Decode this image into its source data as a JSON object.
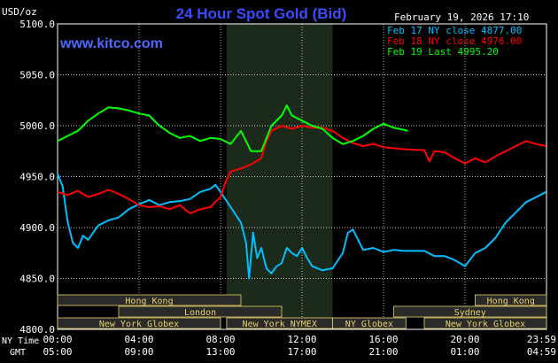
{
  "colors": {
    "background": "#000000",
    "grid": "#ffffff",
    "session_shade": "#1c2a1c",
    "title": "#3a4cff",
    "website": "#4a6cff",
    "text": "#ffffff",
    "band_fill": "#2a2a2a",
    "band_text": "#e8d26a",
    "band_border": "#e8d26a",
    "feb17": "#00bfff",
    "feb18": "#ff0000",
    "feb19": "#00ff00"
  },
  "header": {
    "unit": "USD/oz",
    "title": "24 Hour Spot Gold (Bid)",
    "datetime": "February 19, 2026 17:10",
    "website": "www.kitco.com"
  },
  "legend": {
    "entries": [
      {
        "id": "feb17",
        "label": "Feb 17 NY close 4877.00"
      },
      {
        "id": "feb18",
        "label": "Feb 18 NY close 4976.00"
      },
      {
        "id": "feb19",
        "label": "Feb 19 Last 4995.20"
      }
    ]
  },
  "axis": {
    "x_row_label_ny": "NY Time",
    "x_row_label_gmt": "GMT",
    "ny_ticks": [
      "00:00",
      "04:00",
      "08:00",
      "12:00",
      "16:00",
      "20:00",
      "23:59"
    ],
    "gmt_ticks": [
      "05:00",
      "09:00",
      "13:00",
      "17:00",
      "21:00",
      "01:00",
      "04:59"
    ]
  },
  "sessions": {
    "row1": [
      {
        "name": "Hong Kong",
        "start": 0,
        "end": 9
      },
      {
        "name": "Hong Kong",
        "start": 20.5,
        "end": 24
      }
    ],
    "row2": [
      {
        "name": "London",
        "start": 3,
        "end": 11
      },
      {
        "name": "Sydney",
        "start": 16.5,
        "end": 24
      }
    ],
    "row3": [
      {
        "name": "New York Globex",
        "start": 0,
        "end": 8
      },
      {
        "name": "New York NYMEX",
        "start": 8.3,
        "end": 13.5
      },
      {
        "name": "NY Globex",
        "start": 13.5,
        "end": 17.1
      },
      {
        "name": "New York Globex",
        "start": 18,
        "end": 24
      }
    ]
  },
  "chart_data": {
    "type": "line",
    "title": "24 Hour Spot Gold (Bid)",
    "ylabel": "USD/oz",
    "xlabel": "NY Time",
    "xlim": [
      0,
      24
    ],
    "ylim": [
      4800,
      5100
    ],
    "y_ticks": [
      "4800.0",
      "4850.0",
      "4900.0",
      "4950.0",
      "5000.0",
      "5050.0",
      "5100.0"
    ],
    "x_ticks": [
      0,
      4,
      8,
      12,
      16,
      20,
      23.98
    ],
    "shaded_session": [
      8.3,
      13.5
    ],
    "grid": true,
    "legend_position": "top-right",
    "series": [
      {
        "id": "feb17",
        "name": "Feb 17 NY close 4877.00",
        "points": [
          [
            0,
            4953
          ],
          [
            0.25,
            4940
          ],
          [
            0.5,
            4905
          ],
          [
            0.75,
            4885
          ],
          [
            1,
            4880
          ],
          [
            1.25,
            4892
          ],
          [
            1.5,
            4888
          ],
          [
            2,
            4902
          ],
          [
            2.5,
            4907
          ],
          [
            3,
            4910
          ],
          [
            3.5,
            4918
          ],
          [
            4,
            4923
          ],
          [
            4.5,
            4927
          ],
          [
            5,
            4922
          ],
          [
            5.5,
            4925
          ],
          [
            6,
            4926
          ],
          [
            6.5,
            4928
          ],
          [
            7,
            4935
          ],
          [
            7.5,
            4938
          ],
          [
            7.75,
            4942
          ],
          [
            8,
            4935
          ],
          [
            8.5,
            4920
          ],
          [
            9,
            4905
          ],
          [
            9.25,
            4885
          ],
          [
            9.4,
            4850
          ],
          [
            9.6,
            4895
          ],
          [
            9.8,
            4870
          ],
          [
            10,
            4880
          ],
          [
            10.25,
            4860
          ],
          [
            10.5,
            4855
          ],
          [
            10.75,
            4862
          ],
          [
            11,
            4865
          ],
          [
            11.25,
            4880
          ],
          [
            11.5,
            4875
          ],
          [
            11.75,
            4872
          ],
          [
            12,
            4880
          ],
          [
            12.25,
            4870
          ],
          [
            12.5,
            4862
          ],
          [
            13,
            4858
          ],
          [
            13.5,
            4860
          ],
          [
            14,
            4875
          ],
          [
            14.25,
            4895
          ],
          [
            14.5,
            4898
          ],
          [
            14.75,
            4888
          ],
          [
            15,
            4878
          ],
          [
            15.5,
            4880
          ],
          [
            16,
            4876
          ],
          [
            16.5,
            4878
          ],
          [
            17,
            4877
          ],
          [
            18,
            4877
          ],
          [
            18.5,
            4872
          ],
          [
            19,
            4872
          ],
          [
            19.5,
            4868
          ],
          [
            20,
            4862
          ],
          [
            20.5,
            4875
          ],
          [
            21,
            4880
          ],
          [
            21.5,
            4890
          ],
          [
            22,
            4905
          ],
          [
            22.5,
            4915
          ],
          [
            23,
            4925
          ],
          [
            23.5,
            4930
          ],
          [
            23.98,
            4935
          ]
        ]
      },
      {
        "id": "feb18",
        "name": "Feb 18 NY close 4976.00",
        "points": [
          [
            0,
            4935
          ],
          [
            0.5,
            4932
          ],
          [
            1,
            4936
          ],
          [
            1.5,
            4930
          ],
          [
            2,
            4933
          ],
          [
            2.5,
            4937
          ],
          [
            3,
            4933
          ],
          [
            3.5,
            4928
          ],
          [
            4,
            4922
          ],
          [
            4.5,
            4920
          ],
          [
            5,
            4921
          ],
          [
            5.5,
            4918
          ],
          [
            6,
            4922
          ],
          [
            6.5,
            4914
          ],
          [
            7,
            4918
          ],
          [
            7.5,
            4920
          ],
          [
            8,
            4930
          ],
          [
            8.25,
            4945
          ],
          [
            8.5,
            4955
          ],
          [
            9,
            4958
          ],
          [
            9.5,
            4962
          ],
          [
            10,
            4968
          ],
          [
            10.25,
            4985
          ],
          [
            10.5,
            4995
          ],
          [
            11,
            5000
          ],
          [
            11.5,
            4997
          ],
          [
            12,
            5000
          ],
          [
            12.5,
            4998
          ],
          [
            13,
            4998
          ],
          [
            13.5,
            4995
          ],
          [
            14,
            4988
          ],
          [
            14.5,
            4983
          ],
          [
            15,
            4980
          ],
          [
            15.5,
            4982
          ],
          [
            16,
            4979
          ],
          [
            17,
            4977
          ],
          [
            18,
            4976
          ],
          [
            18.25,
            4965
          ],
          [
            18.5,
            4975
          ],
          [
            19,
            4974
          ],
          [
            19.5,
            4968
          ],
          [
            20,
            4963
          ],
          [
            20.5,
            4968
          ],
          [
            21,
            4964
          ],
          [
            21.5,
            4970
          ],
          [
            22,
            4975
          ],
          [
            22.5,
            4980
          ],
          [
            23,
            4985
          ],
          [
            23.5,
            4982
          ],
          [
            23.98,
            4980
          ]
        ]
      },
      {
        "id": "feb19",
        "name": "Feb 19 Last 4995.20",
        "points": [
          [
            0,
            4985
          ],
          [
            0.5,
            4990
          ],
          [
            1,
            4995
          ],
          [
            1.5,
            5005
          ],
          [
            2,
            5012
          ],
          [
            2.5,
            5018
          ],
          [
            3,
            5017
          ],
          [
            3.5,
            5015
          ],
          [
            4,
            5012
          ],
          [
            4.5,
            5010
          ],
          [
            5,
            5000
          ],
          [
            5.5,
            4993
          ],
          [
            6,
            4988
          ],
          [
            6.5,
            4990
          ],
          [
            7,
            4985
          ],
          [
            7.5,
            4988
          ],
          [
            8,
            4987
          ],
          [
            8.5,
            4982
          ],
          [
            9,
            4995
          ],
          [
            9.25,
            4985
          ],
          [
            9.5,
            4975
          ],
          [
            10,
            4975
          ],
          [
            10.5,
            5000
          ],
          [
            11,
            5010
          ],
          [
            11.25,
            5020
          ],
          [
            11.5,
            5010
          ],
          [
            12,
            5005
          ],
          [
            12.5,
            5000
          ],
          [
            13,
            4997
          ],
          [
            13.5,
            4988
          ],
          [
            14,
            4982
          ],
          [
            14.5,
            4985
          ],
          [
            15,
            4990
          ],
          [
            15.5,
            4997
          ],
          [
            16,
            5002
          ],
          [
            16.5,
            4998
          ],
          [
            17,
            4996
          ],
          [
            17.2,
            4995
          ]
        ]
      }
    ]
  }
}
